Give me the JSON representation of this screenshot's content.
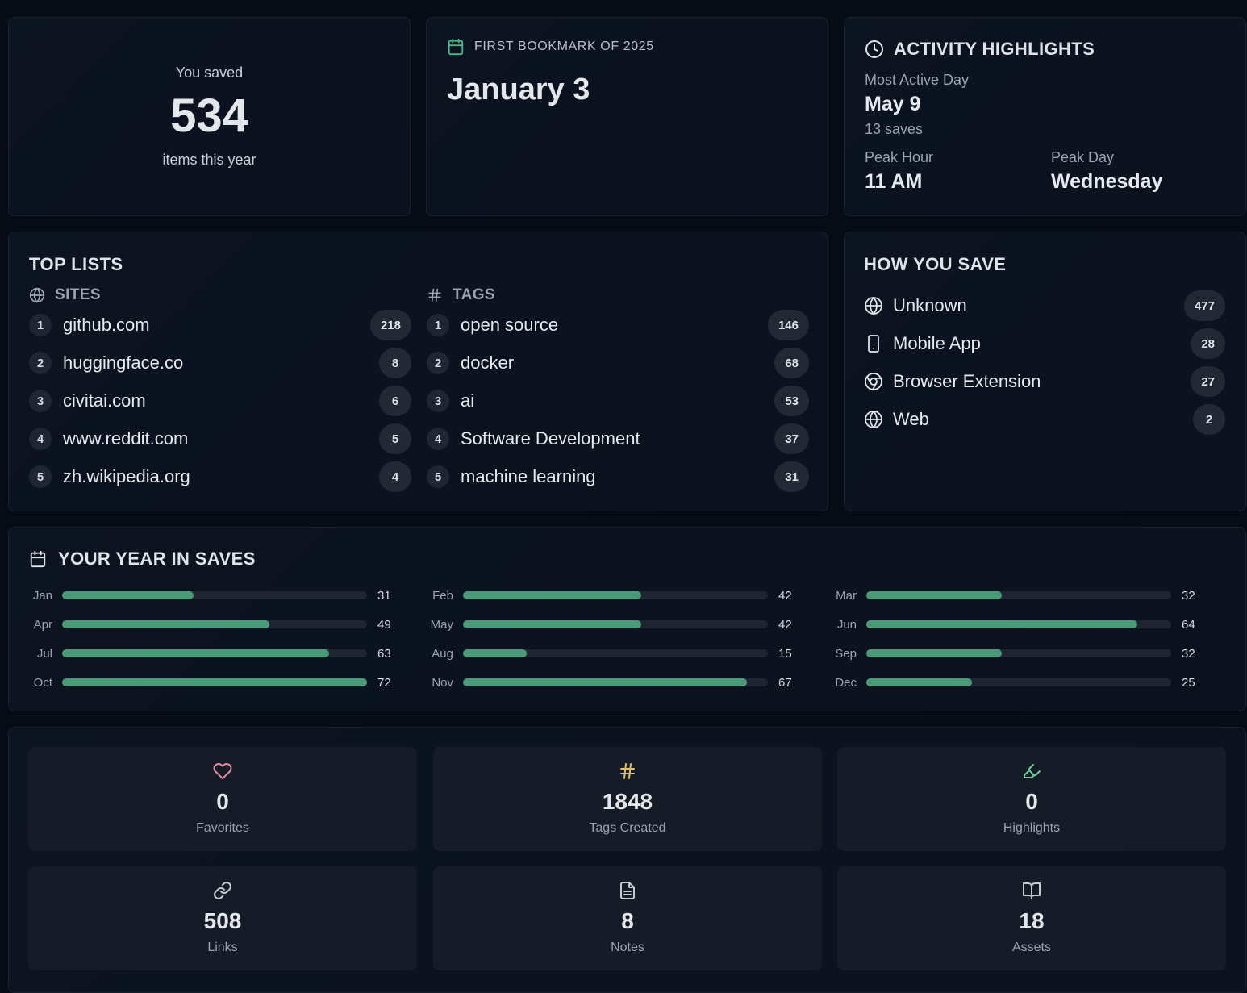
{
  "saved": {
    "prefix": "You saved",
    "count": "534",
    "suffix": "items this year"
  },
  "first_bookmark": {
    "label": "FIRST BOOKMARK OF 2025",
    "date": "January 3"
  },
  "activity": {
    "title": "ACTIVITY HIGHLIGHTS",
    "most_active_label": "Most Active Day",
    "most_active_value": "May 9",
    "most_active_saves": "13 saves",
    "peak_hour_label": "Peak Hour",
    "peak_hour_value": "11 AM",
    "peak_day_label": "Peak Day",
    "peak_day_value": "Wednesday"
  },
  "top_lists": {
    "title": "TOP LISTS",
    "sites_title": "SITES",
    "tags_title": "TAGS",
    "sites": [
      {
        "rank": "1",
        "name": "github.com",
        "count": "218"
      },
      {
        "rank": "2",
        "name": "huggingface.co",
        "count": "8"
      },
      {
        "rank": "3",
        "name": "civitai.com",
        "count": "6"
      },
      {
        "rank": "4",
        "name": "www.reddit.com",
        "count": "5"
      },
      {
        "rank": "5",
        "name": "zh.wikipedia.org",
        "count": "4"
      }
    ],
    "tags": [
      {
        "rank": "1",
        "name": "open source",
        "count": "146"
      },
      {
        "rank": "2",
        "name": "docker",
        "count": "68"
      },
      {
        "rank": "3",
        "name": "ai",
        "count": "53"
      },
      {
        "rank": "4",
        "name": "Software Development",
        "count": "37"
      },
      {
        "rank": "5",
        "name": "machine learning",
        "count": "31"
      }
    ]
  },
  "how_you_save": {
    "title": "HOW YOU SAVE",
    "items": [
      {
        "name": "Unknown",
        "count": "477",
        "icon": "globe-icon"
      },
      {
        "name": "Mobile App",
        "count": "28",
        "icon": "smartphone-icon"
      },
      {
        "name": "Browser Extension",
        "count": "27",
        "icon": "chrome-icon"
      },
      {
        "name": "Web",
        "count": "2",
        "icon": "globe-icon"
      }
    ]
  },
  "year": {
    "title": "YOUR YEAR IN SAVES",
    "max": 72,
    "months": [
      {
        "name": "Jan",
        "value": 31
      },
      {
        "name": "Feb",
        "value": 42
      },
      {
        "name": "Mar",
        "value": 32
      },
      {
        "name": "Apr",
        "value": 49
      },
      {
        "name": "May",
        "value": 42
      },
      {
        "name": "Jun",
        "value": 64
      },
      {
        "name": "Jul",
        "value": 63
      },
      {
        "name": "Aug",
        "value": 15
      },
      {
        "name": "Sep",
        "value": 32
      },
      {
        "name": "Oct",
        "value": 72
      },
      {
        "name": "Nov",
        "value": 67
      },
      {
        "name": "Dec",
        "value": 25
      }
    ]
  },
  "stats": [
    {
      "value": "0",
      "label": "Favorites",
      "icon": "heart-icon",
      "color": "#e58aa0"
    },
    {
      "value": "1848",
      "label": "Tags Created",
      "icon": "hash-icon",
      "color": "#e0c25a"
    },
    {
      "value": "0",
      "label": "Highlights",
      "icon": "highlighter-icon",
      "color": "#6fcf9a"
    },
    {
      "value": "508",
      "label": "Links",
      "icon": "link-icon",
      "color": "#c5cad3"
    },
    {
      "value": "8",
      "label": "Notes",
      "icon": "note-icon",
      "color": "#c5cad3"
    },
    {
      "value": "18",
      "label": "Assets",
      "icon": "book-icon",
      "color": "#c5cad3"
    }
  ],
  "colors": {
    "accent": "#4a9a78",
    "background": "#060b16"
  }
}
